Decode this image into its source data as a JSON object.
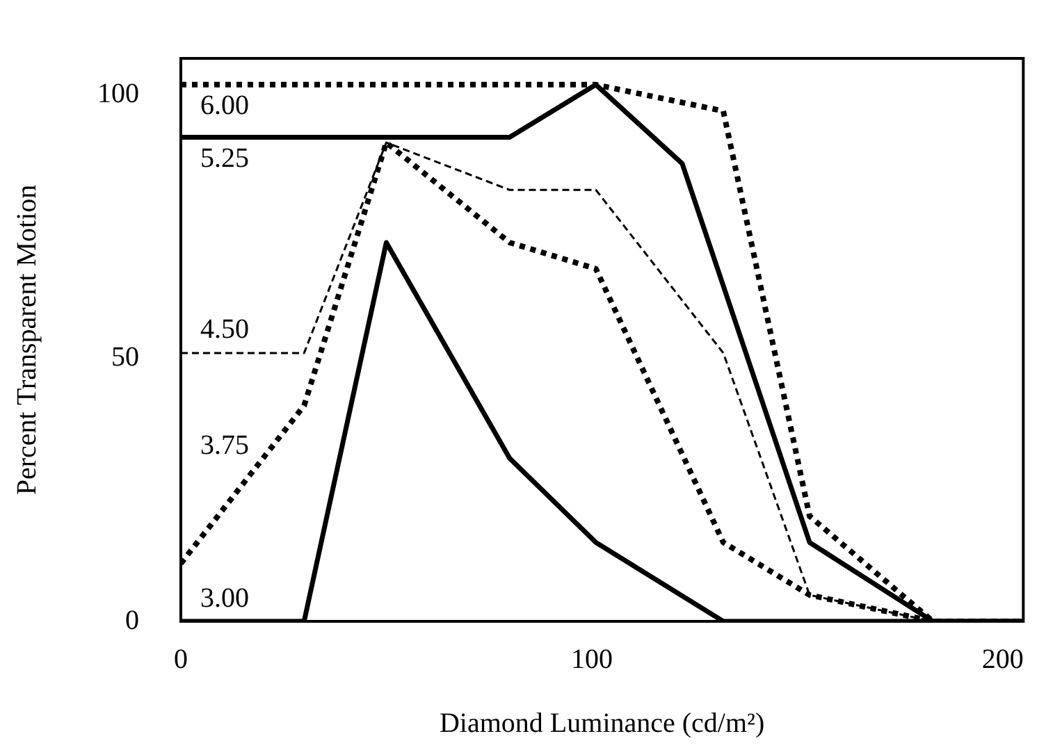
{
  "chart_data": {
    "type": "line",
    "xlabel": "Diamond Luminance (cd/m²)",
    "ylabel": "Percent Transparent Motion",
    "x": [
      0,
      30,
      50,
      80,
      101,
      132,
      153,
      183,
      205
    ],
    "xlim": [
      0,
      205
    ],
    "xticks": [
      0,
      100,
      200
    ],
    "ylim": [
      0,
      107
    ],
    "yticks": [
      0,
      50,
      100
    ],
    "grid": false,
    "legend": false,
    "marker": "none",
    "series": [
      {
        "name": "6.00",
        "color": "#000000",
        "line_style": "dotted",
        "values": [
          102,
          102,
          102,
          102,
          102,
          97,
          20,
          0,
          0
        ]
      },
      {
        "name": "5.25",
        "color": "#000000",
        "line_style": "solid",
        "x": [
          0,
          30,
          50,
          80,
          101,
          122,
          153,
          183,
          205
        ],
        "values": [
          92,
          92,
          92,
          92,
          102,
          87,
          15,
          0,
          0
        ]
      },
      {
        "name": "4.50",
        "color": "#000000",
        "line_style": "dashed",
        "values": [
          51,
          51,
          91,
          82,
          82,
          51,
          5,
          0,
          0
        ]
      },
      {
        "name": "3.75",
        "color": "#000000",
        "line_style": "dotted",
        "values": [
          11,
          41,
          91,
          72,
          67,
          15,
          5,
          0,
          0
        ]
      },
      {
        "name": "3.00",
        "color": "#000000",
        "line_style": "solid",
        "values": [
          0,
          0,
          72,
          31,
          15,
          0,
          0,
          0,
          0
        ]
      }
    ]
  }
}
